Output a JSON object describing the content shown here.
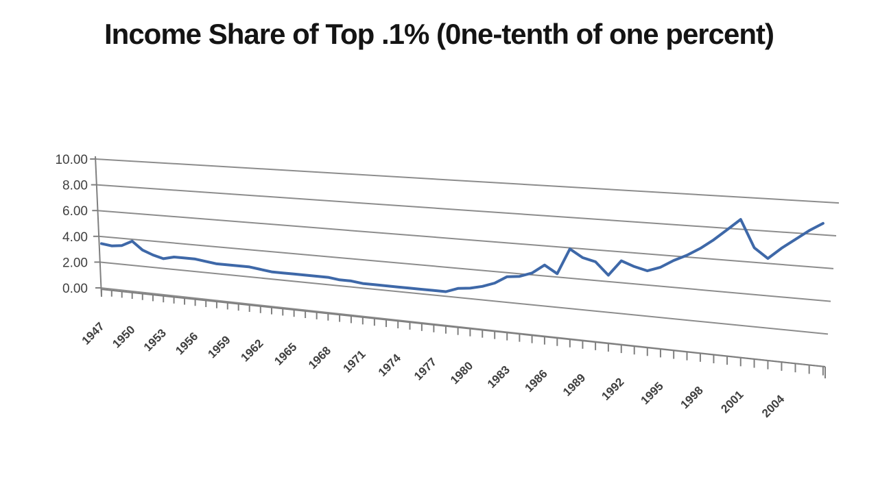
{
  "chart_data": {
    "type": "line",
    "style": "3d-perspective-line",
    "title": "Income Share of Top .1% (0ne-tenth of one percent)",
    "xlabel": "",
    "ylabel": "",
    "x": [
      1947,
      1948,
      1949,
      1950,
      1951,
      1952,
      1953,
      1954,
      1955,
      1956,
      1957,
      1958,
      1959,
      1960,
      1961,
      1962,
      1963,
      1964,
      1965,
      1966,
      1967,
      1968,
      1969,
      1970,
      1971,
      1972,
      1973,
      1974,
      1975,
      1976,
      1977,
      1978,
      1979,
      1980,
      1981,
      1982,
      1983,
      1984,
      1985,
      1986,
      1987,
      1988,
      1989,
      1990,
      1991,
      1992,
      1993,
      1994,
      1995,
      1996,
      1997,
      1998,
      1999,
      2000,
      2001,
      2002,
      2003,
      2004,
      2005,
      2006,
      2007
    ],
    "values": [
      3.4,
      3.3,
      3.4,
      3.8,
      3.2,
      2.9,
      2.7,
      2.9,
      2.9,
      2.9,
      2.8,
      2.7,
      2.7,
      2.7,
      2.7,
      2.6,
      2.5,
      2.5,
      2.5,
      2.5,
      2.5,
      2.5,
      2.4,
      2.4,
      2.3,
      2.3,
      2.3,
      2.3,
      2.3,
      2.3,
      2.3,
      2.3,
      2.6,
      2.7,
      2.9,
      3.2,
      3.7,
      3.8,
      4.1,
      4.7,
      4.2,
      5.9,
      5.4,
      5.2,
      4.4,
      5.4,
      5.1,
      4.9,
      5.2,
      5.7,
      6.1,
      6.6,
      7.2,
      7.9,
      8.6,
      6.9,
      6.3,
      7.0,
      7.6,
      8.2,
      8.7
    ],
    "ylim": [
      0,
      10
    ],
    "ytick_step": 2,
    "ytick_labels": [
      "0.00",
      "2.00",
      "4.00",
      "6.00",
      "8.00",
      "10.00"
    ],
    "xtick_labels": [
      "1947",
      "1950",
      "1953",
      "1956",
      "1959",
      "1962",
      "1965",
      "1968",
      "1971",
      "1974",
      "1977",
      "1980",
      "1983",
      "1986",
      "1989",
      "1992",
      "1995",
      "1998",
      "2001",
      "2004"
    ],
    "xtick_label_interval": 3,
    "grid": true,
    "legend": false
  },
  "colors": {
    "line": "#3E68A8",
    "grid": "#8C8C8C",
    "axis": "#7F7F7F",
    "tick_label": "#3F3F3F",
    "title": "#141414",
    "background": "#FFFFFF"
  }
}
